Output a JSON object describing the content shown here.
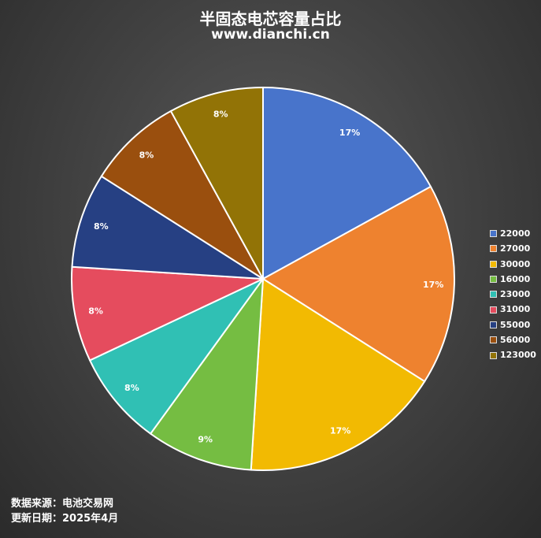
{
  "chart_data": {
    "type": "pie",
    "title": "半固态电芯容量占比",
    "subtitle": "www.dianchi.cn",
    "categories": [
      "22000",
      "27000",
      "30000",
      "16000",
      "23000",
      "31000",
      "55000",
      "56000",
      "123000"
    ],
    "values": [
      17,
      17,
      17,
      9,
      8,
      8,
      8,
      8,
      8
    ],
    "labels": [
      "17%",
      "17%",
      "17%",
      "9%",
      "8%",
      "8%",
      "8%",
      "8%",
      "8%"
    ],
    "colors": [
      "#4874CB",
      "#EE822F",
      "#F2BA02",
      "#75BD42",
      "#30C0B4",
      "#E54C5E",
      "#264083",
      "#9A4F0E",
      "#927306"
    ],
    "legend_position": "right"
  },
  "footer": {
    "source": "数据来源：电池交易网",
    "date": "更新日期：2025年4月"
  }
}
